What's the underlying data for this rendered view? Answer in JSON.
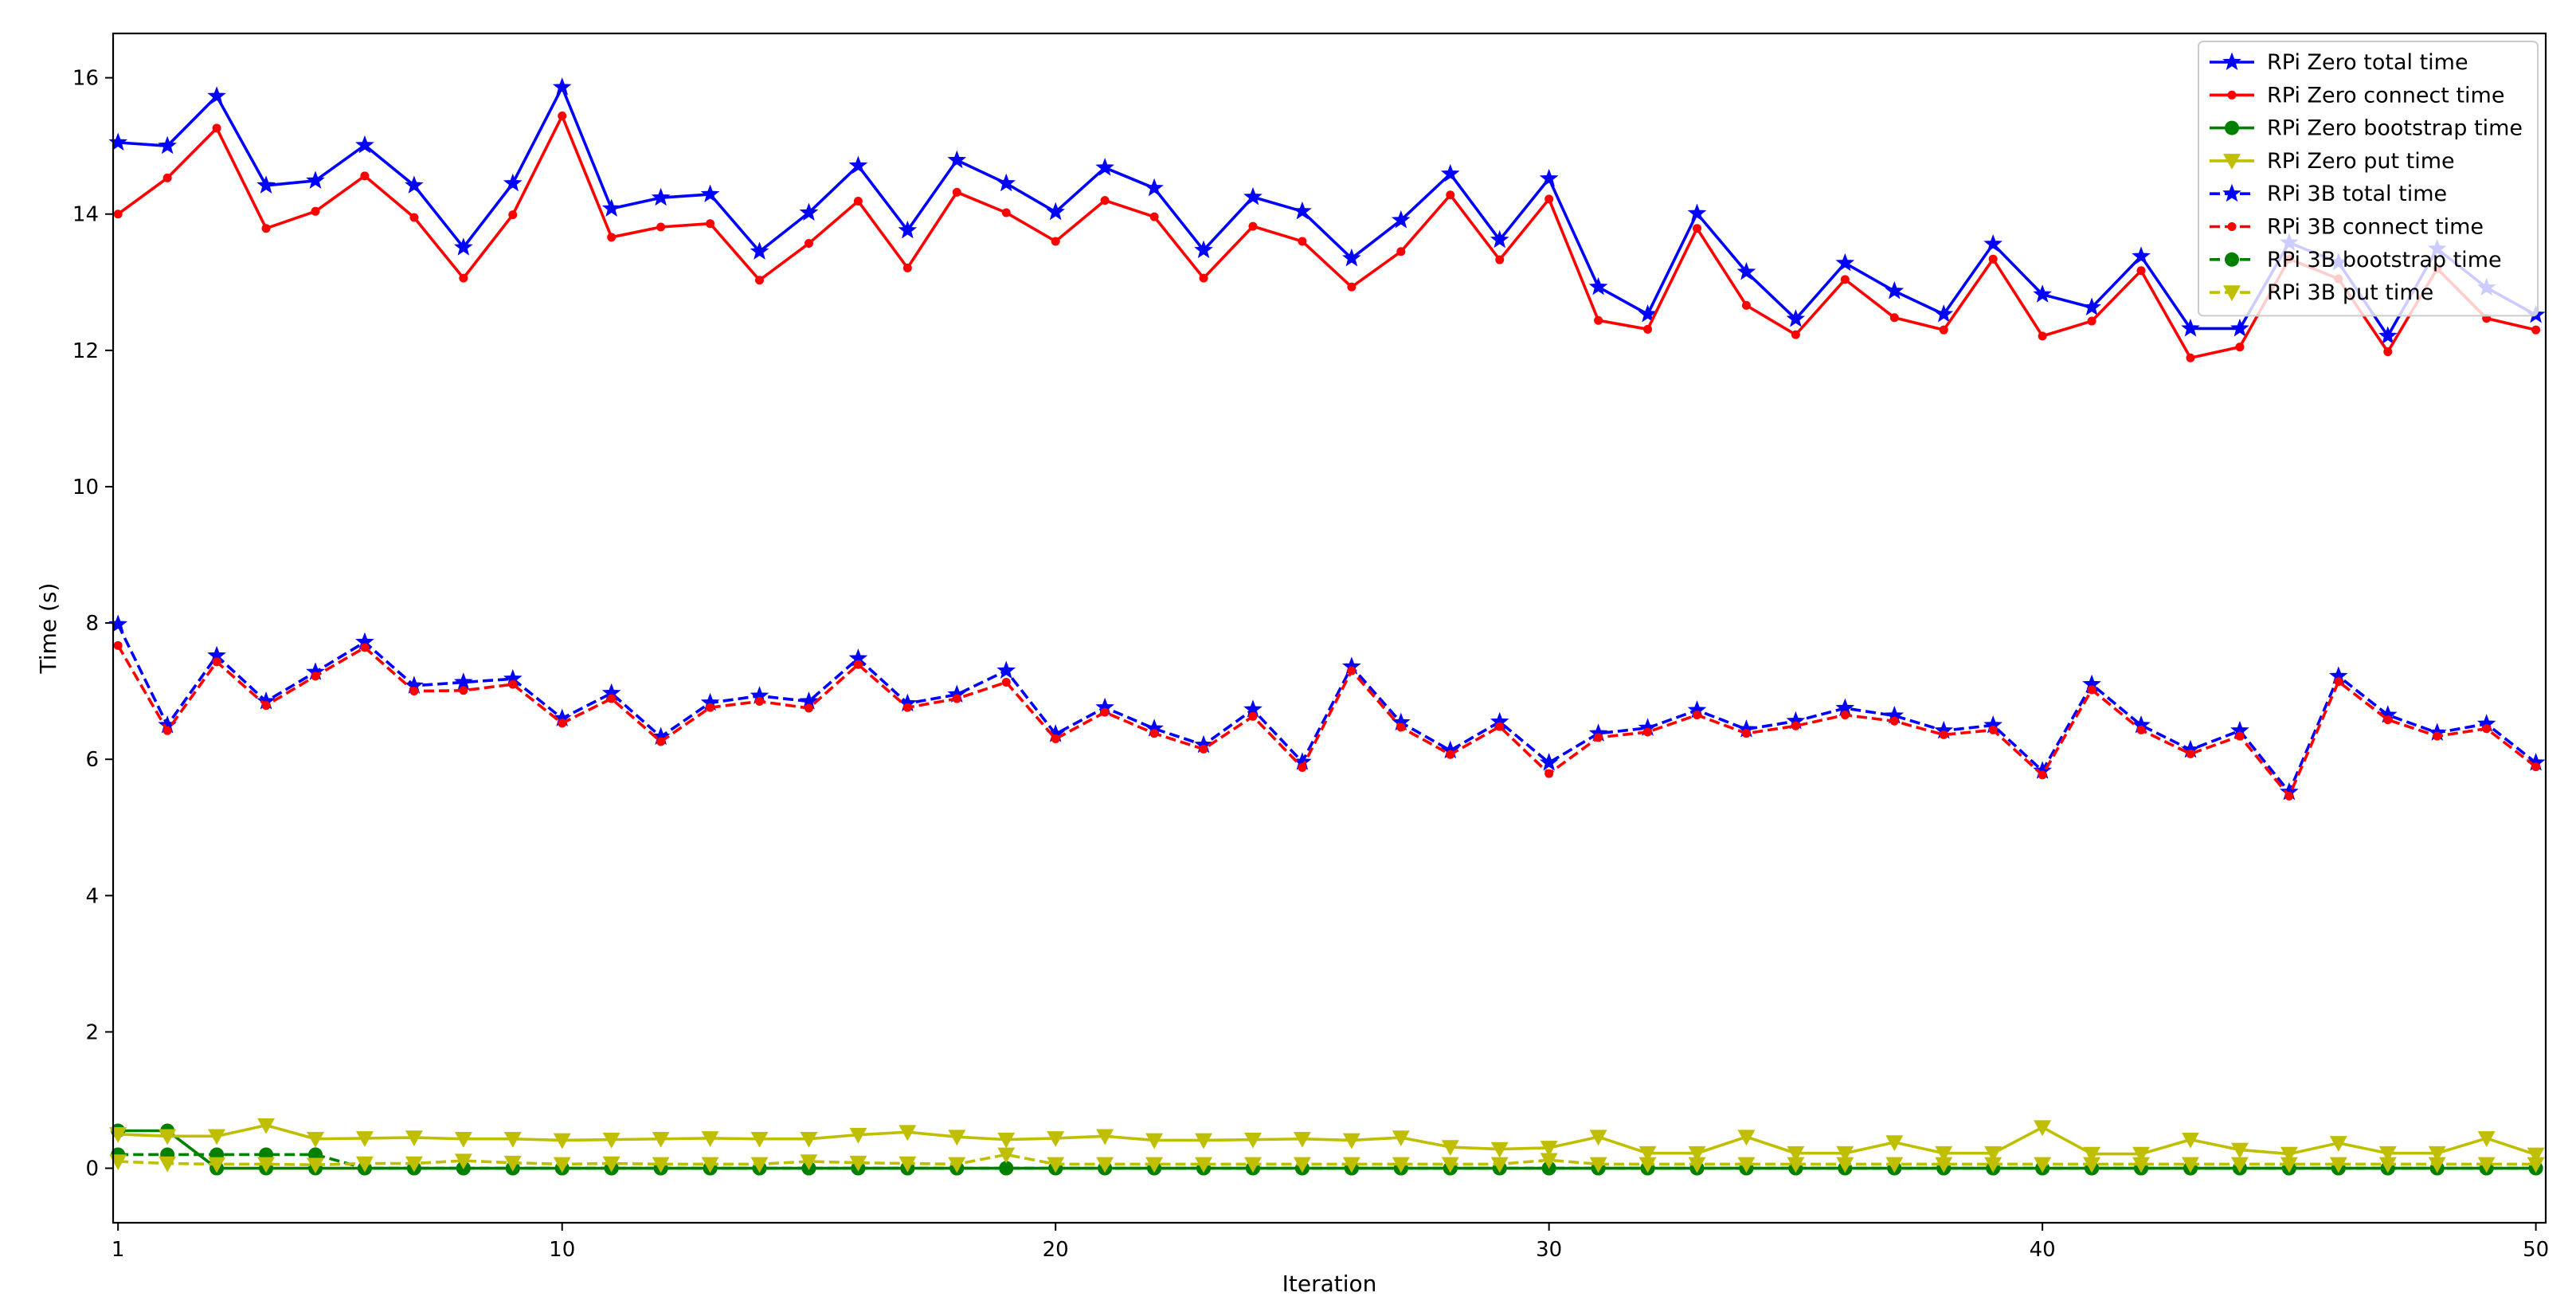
{
  "chart_data": {
    "type": "line",
    "title": "",
    "xlabel": "Iteration",
    "ylabel": "Time (s)",
    "xlim": [
      0.9,
      50.2
    ],
    "ylim": [
      -0.8,
      16.65
    ],
    "xticks": [
      1,
      10,
      20,
      30,
      40,
      50
    ],
    "yticks": [
      0,
      2,
      4,
      6,
      8,
      10,
      12,
      14,
      16
    ],
    "grid": false,
    "legend_position": "top-right",
    "x": [
      1,
      2,
      3,
      4,
      5,
      6,
      7,
      8,
      9,
      10,
      11,
      12,
      13,
      14,
      15,
      16,
      17,
      18,
      19,
      20,
      21,
      22,
      23,
      24,
      25,
      26,
      27,
      28,
      29,
      30,
      31,
      32,
      33,
      34,
      35,
      36,
      37,
      38,
      39,
      40,
      41,
      42,
      43,
      44,
      45,
      46,
      47,
      48,
      49,
      50
    ],
    "series": [
      {
        "name": "RPi Zero total time",
        "color": "#0000ff",
        "dash": "solid",
        "marker": "star",
        "values": [
          15.05,
          15.0,
          15.73,
          14.42,
          14.49,
          15.01,
          14.42,
          13.51,
          14.45,
          15.86,
          14.08,
          14.24,
          14.29,
          13.45,
          14.02,
          14.71,
          13.76,
          14.79,
          14.45,
          14.03,
          14.68,
          14.38,
          13.47,
          14.25,
          14.04,
          13.35,
          13.91,
          14.59,
          13.62,
          14.52,
          12.93,
          12.53,
          14.01,
          13.15,
          12.46,
          13.28,
          12.87,
          12.53,
          13.56,
          12.82,
          12.63,
          13.38,
          12.32,
          12.32,
          13.58,
          13.29,
          12.21,
          13.49,
          12.92,
          12.52
        ]
      },
      {
        "name": "RPi Zero connect time",
        "color": "#ff0000",
        "dash": "solid",
        "marker": "dot",
        "values": [
          14.0,
          14.53,
          15.26,
          13.79,
          14.04,
          14.56,
          13.95,
          13.06,
          13.99,
          15.44,
          13.66,
          13.81,
          13.86,
          13.03,
          13.57,
          14.19,
          13.21,
          14.32,
          14.02,
          13.6,
          14.2,
          13.96,
          13.06,
          13.82,
          13.6,
          12.93,
          13.45,
          14.28,
          13.33,
          14.22,
          12.44,
          12.31,
          13.79,
          12.66,
          12.23,
          13.04,
          12.48,
          12.3,
          13.34,
          12.21,
          12.43,
          13.17,
          11.89,
          12.05,
          13.34,
          13.05,
          11.98,
          13.2,
          12.47,
          12.3
        ]
      },
      {
        "name": "RPi Zero bootstrap time",
        "color": "#008000",
        "dash": "solid",
        "marker": "circle",
        "values": [
          0.55,
          0.55,
          0.0,
          0.0,
          0.0,
          0.0,
          0.0,
          0.0,
          0.0,
          0.0,
          0.0,
          0.0,
          0.0,
          0.0,
          0.0,
          0.0,
          0.0,
          0.0,
          0.0,
          0.0,
          0.0,
          0.0,
          0.0,
          0.0,
          0.0,
          0.0,
          0.0,
          0.0,
          0.0,
          0.0,
          0.0,
          0.0,
          0.0,
          0.0,
          0.0,
          0.0,
          0.0,
          0.0,
          0.0,
          0.0,
          0.0,
          0.0,
          0.0,
          0.0,
          0.0,
          0.0,
          0.0,
          0.0,
          0.0,
          0.0
        ]
      },
      {
        "name": "RPi Zero put time",
        "color": "#bfbf00",
        "dash": "solid",
        "marker": "triangle-down",
        "values": [
          0.5,
          0.47,
          0.47,
          0.63,
          0.43,
          0.44,
          0.45,
          0.43,
          0.43,
          0.41,
          0.42,
          0.43,
          0.44,
          0.43,
          0.43,
          0.49,
          0.53,
          0.46,
          0.42,
          0.44,
          0.47,
          0.41,
          0.41,
          0.42,
          0.43,
          0.41,
          0.45,
          0.31,
          0.28,
          0.3,
          0.46,
          0.22,
          0.22,
          0.46,
          0.22,
          0.22,
          0.38,
          0.22,
          0.22,
          0.6,
          0.21,
          0.21,
          0.42,
          0.27,
          0.21,
          0.37,
          0.22,
          0.22,
          0.44,
          0.2
        ]
      },
      {
        "name": "RPi 3B total time",
        "color": "#0000ff",
        "dash": "dashed",
        "marker": "star",
        "values": [
          7.98,
          6.5,
          7.52,
          6.85,
          7.28,
          7.72,
          7.08,
          7.13,
          7.18,
          6.6,
          6.97,
          6.33,
          6.83,
          6.93,
          6.85,
          7.48,
          6.82,
          6.95,
          7.3,
          6.37,
          6.76,
          6.45,
          6.21,
          6.73,
          5.96,
          7.36,
          6.54,
          6.13,
          6.55,
          5.95,
          6.38,
          6.46,
          6.72,
          6.44,
          6.56,
          6.75,
          6.64,
          6.42,
          6.5,
          5.83,
          7.1,
          6.5,
          6.14,
          6.42,
          5.52,
          7.22,
          6.65,
          6.39,
          6.52,
          5.95
        ]
      },
      {
        "name": "RPi 3B connect time",
        "color": "#ff0000",
        "dash": "dashed",
        "marker": "dot",
        "values": [
          7.67,
          6.42,
          7.43,
          6.79,
          7.22,
          7.64,
          7.0,
          7.01,
          7.1,
          6.53,
          6.89,
          6.26,
          6.76,
          6.85,
          6.75,
          7.39,
          6.76,
          6.89,
          7.13,
          6.3,
          6.69,
          6.38,
          6.15,
          6.63,
          5.88,
          7.3,
          6.47,
          6.07,
          6.48,
          5.79,
          6.32,
          6.4,
          6.65,
          6.38,
          6.49,
          6.65,
          6.56,
          6.36,
          6.43,
          5.77,
          7.02,
          6.43,
          6.08,
          6.34,
          5.46,
          7.14,
          6.58,
          6.34,
          6.45,
          5.89
        ]
      },
      {
        "name": "RPi 3B bootstrap time",
        "color": "#008000",
        "dash": "dashed",
        "marker": "circle",
        "values": [
          0.2,
          0.2,
          0.2,
          0.2,
          0.2,
          0.0,
          0.0,
          0.0,
          0.0,
          0.0,
          0.0,
          0.0,
          0.0,
          0.0,
          0.0,
          0.0,
          0.0,
          0.0,
          0.0,
          0.0,
          0.0,
          0.0,
          0.0,
          0.0,
          0.0,
          0.0,
          0.0,
          0.0,
          0.0,
          0.0,
          0.0,
          0.0,
          0.0,
          0.0,
          0.0,
          0.0,
          0.0,
          0.0,
          0.0,
          0.0,
          0.0,
          0.0,
          0.0,
          0.0,
          0.0,
          0.0,
          0.0,
          0.0,
          0.0,
          0.0
        ]
      },
      {
        "name": "RPi 3B put time",
        "color": "#bfbf00",
        "dash": "dashed",
        "marker": "triangle-down",
        "values": [
          0.1,
          0.07,
          0.06,
          0.06,
          0.05,
          0.07,
          0.07,
          0.11,
          0.08,
          0.06,
          0.07,
          0.06,
          0.06,
          0.06,
          0.1,
          0.08,
          0.07,
          0.06,
          0.2,
          0.06,
          0.06,
          0.06,
          0.06,
          0.06,
          0.06,
          0.06,
          0.06,
          0.06,
          0.06,
          0.12,
          0.06,
          0.06,
          0.06,
          0.06,
          0.06,
          0.06,
          0.06,
          0.06,
          0.06,
          0.06,
          0.06,
          0.06,
          0.06,
          0.06,
          0.06,
          0.06,
          0.06,
          0.06,
          0.06,
          0.06
        ]
      }
    ]
  }
}
